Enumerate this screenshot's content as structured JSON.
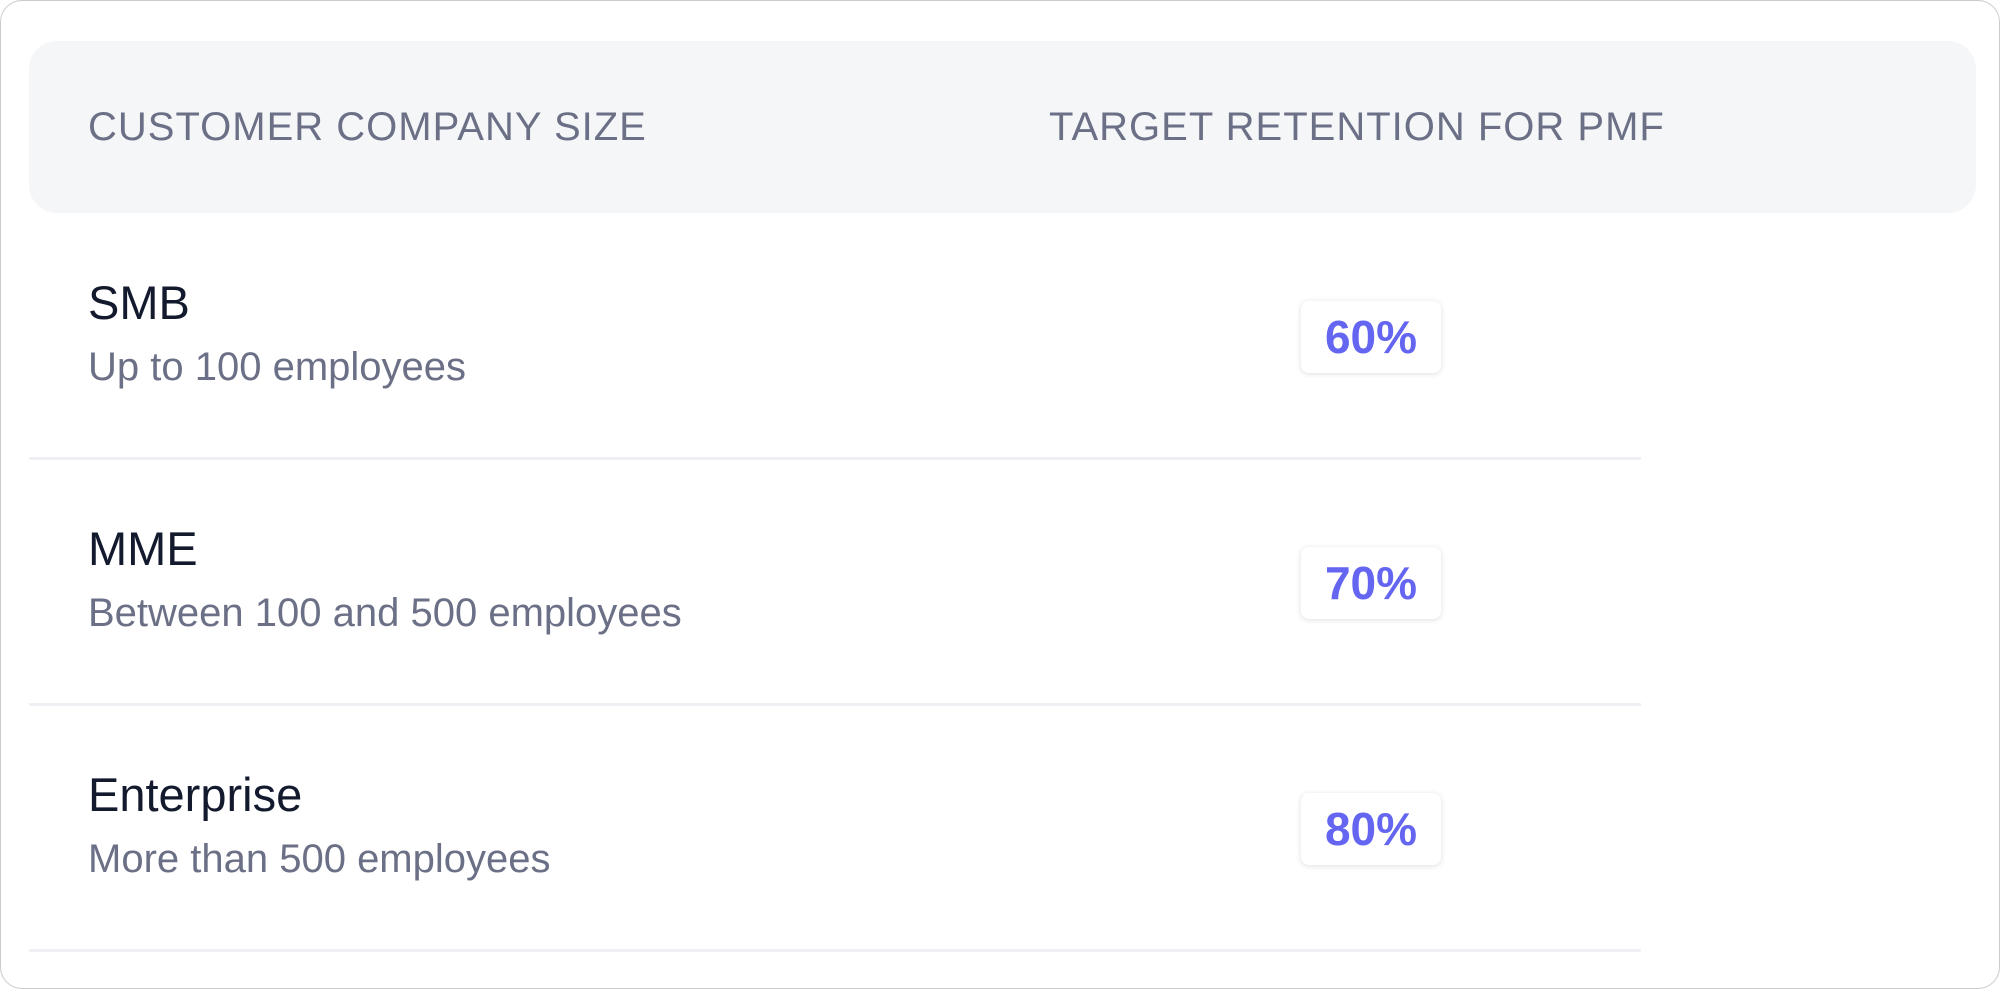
{
  "table": {
    "headers": {
      "company_size": "CUSTOMER COMPANY SIZE",
      "target_retention": "TARGET RETENTION FOR PMF"
    },
    "rows": [
      {
        "title": "SMB",
        "description": "Up to 100 employees",
        "retention": "60%"
      },
      {
        "title": "MME",
        "description": "Between 100 and 500 employees",
        "retention": "70%"
      },
      {
        "title": "Enterprise",
        "description": "More than 500 employees",
        "retention": "80%"
      }
    ]
  },
  "colors": {
    "badge_text": "#6466f1",
    "header_background": "#f5f6f8",
    "header_text": "#6b7086",
    "title_text": "#141a2e"
  }
}
